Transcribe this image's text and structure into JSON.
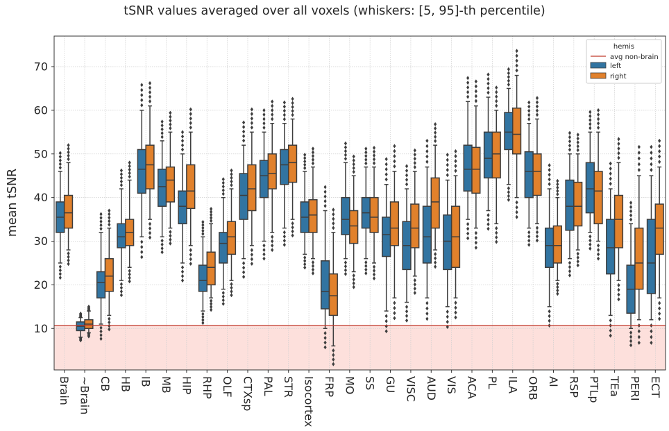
{
  "chart_data": {
    "type": "box",
    "title": "tSNR values averaged over all voxels (whiskers: [5, 95]-th percentile)",
    "xlabel": "",
    "ylabel": "mean tSNR",
    "ylim": [
      0.5,
      77
    ],
    "yticks": [
      10,
      20,
      30,
      40,
      50,
      60,
      70
    ],
    "grid": true,
    "legend": {
      "position": "top-right",
      "title": "hemis",
      "line_label": "avg non-brain",
      "entries": [
        "left",
        "right"
      ]
    },
    "colors": {
      "left": "#3274a1",
      "right": "#e1812c",
      "line": "#c0392b",
      "band": "#fde0dc",
      "median": "#3d3d3d"
    },
    "nonbrain_line": 10.7,
    "categories": [
      "Brain",
      "~Brain",
      "CB",
      "HB",
      "IB",
      "MB",
      "HIP",
      "RHP",
      "OLF",
      "CTXsp",
      "PAL",
      "STR",
      "Isocortex",
      "FRP",
      "MO",
      "SS",
      "GU",
      "VISC",
      "AUD",
      "VIS",
      "ACA",
      "PL",
      "ILA",
      "ORB",
      "AI",
      "RSP",
      "PTLp",
      "TEa",
      "PERI",
      "ECT"
    ],
    "series": [
      {
        "name": "left",
        "boxes": [
          [
            25,
            32,
            35.5,
            39,
            46
          ],
          [
            8,
            9.5,
            10.5,
            11.5,
            12.5
          ],
          [
            11,
            17,
            20.5,
            23,
            32
          ],
          [
            21,
            28.5,
            31,
            34,
            42
          ],
          [
            31,
            41,
            46.5,
            51,
            60
          ],
          [
            31,
            38,
            42.5,
            46.5,
            53
          ],
          [
            25,
            34,
            38,
            41.5,
            50
          ],
          [
            14,
            18.5,
            21,
            24.5,
            31
          ],
          [
            19,
            25,
            29.5,
            32,
            40
          ],
          [
            26,
            35,
            40.5,
            45.5,
            52
          ],
          [
            30,
            40,
            45,
            48.5,
            55
          ],
          [
            33,
            43,
            47.5,
            51,
            57
          ],
          [
            27,
            32,
            35.5,
            39,
            46
          ],
          [
            10,
            14.5,
            18.5,
            25.5,
            37
          ],
          [
            26,
            31.5,
            35,
            40,
            48
          ],
          [
            26,
            33,
            36.5,
            40,
            47
          ],
          [
            14,
            26.5,
            31.5,
            35.5,
            43
          ],
          [
            16,
            23.5,
            29,
            34.5,
            42
          ],
          [
            17,
            25,
            31,
            38,
            47
          ],
          [
            15,
            23.5,
            30,
            36,
            44
          ],
          [
            35,
            41.5,
            46.5,
            52,
            62
          ],
          [
            37,
            44.5,
            49,
            55,
            63
          ],
          [
            43,
            51,
            55,
            59.5,
            65
          ],
          [
            33,
            40,
            46,
            50.5,
            57
          ],
          [
            15,
            24,
            29,
            33,
            42
          ],
          [
            26,
            32.5,
            38,
            44,
            50
          ],
          [
            32,
            36.5,
            42,
            48,
            55
          ],
          [
            13,
            22.5,
            28.5,
            35,
            42
          ],
          [
            10,
            13.5,
            19,
            24.5,
            34
          ],
          [
            12,
            18,
            25,
            35,
            45
          ]
        ]
      },
      {
        "name": "right",
        "boxes": [
          [
            28,
            33,
            36.5,
            40.5,
            48
          ],
          [
            9,
            10,
            11,
            12,
            14
          ],
          [
            13,
            18.5,
            22,
            26,
            33
          ],
          [
            24,
            29,
            32,
            35,
            44
          ],
          [
            35,
            42,
            47.5,
            52,
            61
          ],
          [
            33,
            39,
            44,
            47,
            55
          ],
          [
            29,
            37.5,
            41.5,
            47.5,
            55
          ],
          [
            17,
            20,
            24,
            27.5,
            34
          ],
          [
            21,
            27,
            31,
            34.5,
            42
          ],
          [
            29,
            37,
            42,
            47.5,
            55
          ],
          [
            32,
            42,
            45.5,
            50,
            57
          ],
          [
            35,
            43.5,
            48,
            52,
            58
          ],
          [
            26,
            32,
            36,
            39.5,
            47
          ],
          [
            6,
            13,
            17.5,
            22.5,
            32
          ],
          [
            23,
            29.5,
            33.5,
            37,
            45
          ],
          [
            25,
            32,
            35.5,
            40,
            47
          ],
          [
            17,
            29,
            33,
            39,
            46
          ],
          [
            22,
            28.5,
            33,
            38.5,
            46
          ],
          [
            28,
            33,
            39,
            44.5,
            52
          ],
          [
            17,
            24,
            31,
            38,
            45
          ],
          [
            33,
            41,
            46.5,
            51.5,
            61
          ],
          [
            34,
            44.5,
            50,
            55,
            60
          ],
          [
            40,
            50,
            54.5,
            60.5,
            68
          ],
          [
            34,
            40.5,
            46,
            50,
            58
          ],
          [
            21,
            25,
            29,
            33.5,
            40
          ],
          [
            28,
            33.5,
            38,
            43.5,
            50
          ],
          [
            30,
            34,
            41.5,
            46,
            55
          ],
          [
            21,
            28.5,
            35,
            40.5,
            48
          ],
          [
            12,
            19,
            25,
            33,
            45
          ],
          [
            17,
            27,
            33,
            38.5,
            47
          ]
        ]
      }
    ]
  }
}
